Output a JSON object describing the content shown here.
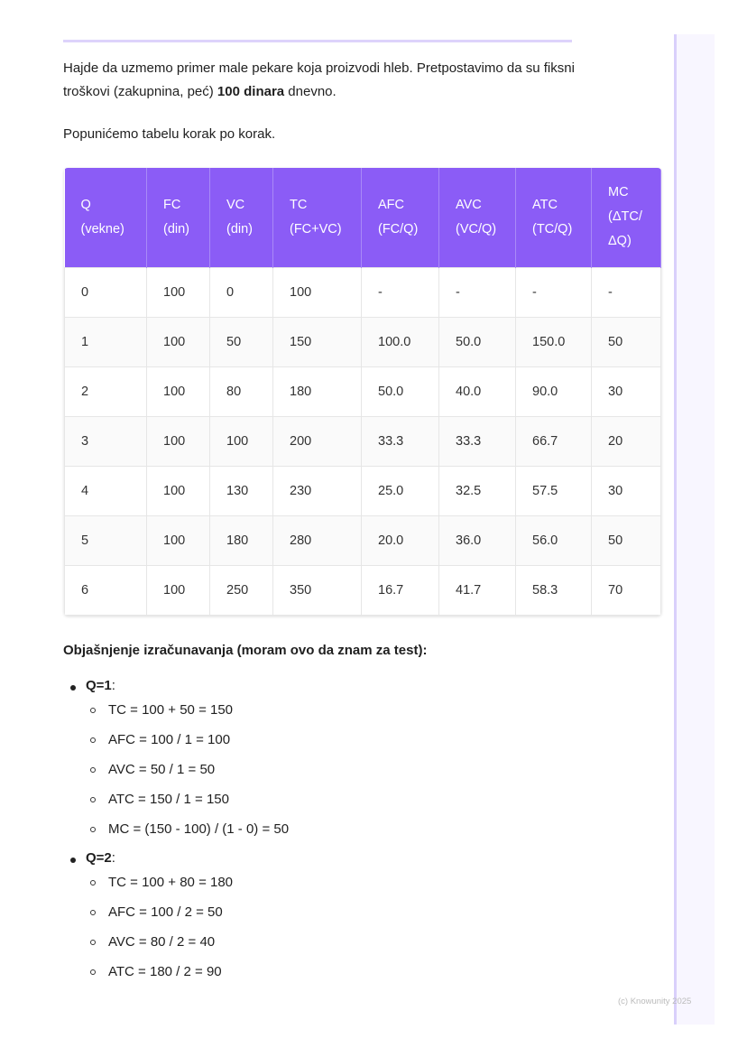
{
  "intro": {
    "text_before": "Hajde da uzmemo primer male pekare koja proizvodi hleb. Pretpostavimo da su fiksni troškovi (zakupnina, peć) ",
    "bold": "100 dinara",
    "text_after": " dnevno."
  },
  "step_text": "Popunićemo tabelu korak po korak.",
  "table": {
    "headers": [
      [
        "Q",
        "(vekne)"
      ],
      [
        "FC",
        "(din)"
      ],
      [
        "VC",
        "(din)"
      ],
      [
        "TC",
        "(FC+VC)"
      ],
      [
        "AFC",
        "(FC/Q)"
      ],
      [
        "AVC",
        "(VC/Q)"
      ],
      [
        "ATC",
        "(TC/Q)"
      ],
      [
        "MC",
        "(ΔTC/",
        "ΔQ)"
      ]
    ],
    "rows": [
      [
        "0",
        "100",
        "0",
        "100",
        "-",
        "-",
        "-",
        "-"
      ],
      [
        "1",
        "100",
        "50",
        "150",
        "100.0",
        "50.0",
        "150.0",
        "50"
      ],
      [
        "2",
        "100",
        "80",
        "180",
        "50.0",
        "40.0",
        "90.0",
        "30"
      ],
      [
        "3",
        "100",
        "100",
        "200",
        "33.3",
        "33.3",
        "66.7",
        "20"
      ],
      [
        "4",
        "100",
        "130",
        "230",
        "25.0",
        "32.5",
        "57.5",
        "30"
      ],
      [
        "5",
        "100",
        "180",
        "280",
        "20.0",
        "36.0",
        "56.0",
        "50"
      ],
      [
        "6",
        "100",
        "250",
        "350",
        "16.7",
        "41.7",
        "58.3",
        "70"
      ]
    ]
  },
  "explanation_title": "Objašnjenje izračunavanja (moram ovo da znam za test):",
  "groups": [
    {
      "label": "Q=1",
      "items": [
        "TC = 100 + 50 = 150",
        "AFC = 100 / 1 = 100",
        "AVC = 50 / 1 = 50",
        "ATC = 150 / 1 = 150",
        "MC = (150 - 100) / (1 - 0) = 50"
      ]
    },
    {
      "label": "Q=2",
      "items": [
        "TC = 100 + 80 = 180",
        "AFC = 100 / 2 = 50",
        "AVC = 80 / 2 = 40",
        "ATC = 180 / 2 = 90"
      ]
    }
  ],
  "footer": "(c) Knowunity 2025",
  "colors": {
    "header_bg": "#8b5cf6",
    "accent_line": "#ddd3fb"
  }
}
